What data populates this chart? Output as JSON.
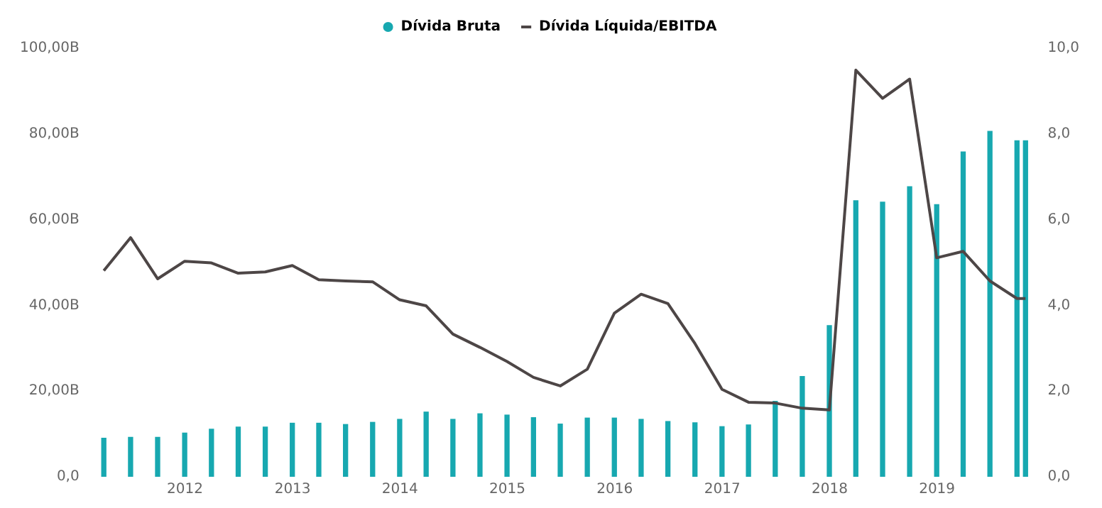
{
  "chart_data": {
    "type": "bar",
    "legend": "top",
    "x": [
      "2011-03-31",
      "2011-06-30",
      "2011-09-30",
      "2011-12-31",
      "2012-03-31",
      "2012-06-30",
      "2012-09-30",
      "2012-12-31",
      "2013-03-31",
      "2013-06-30",
      "2013-09-30",
      "2013-12-31",
      "2014-03-31",
      "2014-06-30",
      "2014-09-30",
      "2014-12-31",
      "2015-03-31",
      "2015-06-30",
      "2015-09-30",
      "2015-12-31",
      "2016-03-31",
      "2016-06-30",
      "2016-09-30",
      "2016-12-31",
      "2017-03-31",
      "2017-06-30",
      "2017-09-30",
      "2017-12-31",
      "2018-03-31",
      "2018-06-30",
      "2018-09-30",
      "2018-12-31",
      "2019-03-31",
      "2019-06-30",
      "2019-09-30",
      "2019-10-29"
    ],
    "xlim": [
      "2011-02-24",
      "2019-11-25"
    ],
    "xticks": [
      {
        "value": "2012-01-01",
        "label": "2012"
      },
      {
        "value": "2013-01-01",
        "label": "2013"
      },
      {
        "value": "2014-01-01",
        "label": "2014"
      },
      {
        "value": "2015-01-01",
        "label": "2015"
      },
      {
        "value": "2016-01-01",
        "label": "2016"
      },
      {
        "value": "2017-01-01",
        "label": "2017"
      },
      {
        "value": "2018-01-01",
        "label": "2018"
      },
      {
        "value": "2019-01-01",
        "label": "2019"
      }
    ],
    "ylim": [
      0,
      100
    ],
    "yticks": [
      {
        "value": 0,
        "label": "0,0"
      },
      {
        "value": 20,
        "label": "20,00B"
      },
      {
        "value": 40,
        "label": "40,00B"
      },
      {
        "value": 60,
        "label": "60,00B"
      },
      {
        "value": 80,
        "label": "80,00B"
      },
      {
        "value": 100,
        "label": "100,00B"
      }
    ],
    "y2lim": [
      0,
      10
    ],
    "y2ticks": [
      {
        "value": 0,
        "label": "0,0"
      },
      {
        "value": 2,
        "label": "2,0"
      },
      {
        "value": 4,
        "label": "4,0"
      },
      {
        "value": 6,
        "label": "6,0"
      },
      {
        "value": 8,
        "label": "8,0"
      },
      {
        "value": 10,
        "label": "10,0"
      }
    ],
    "series": [
      {
        "name": "Dívida Bruta",
        "color": "#17a8b0",
        "values": [
          9.0,
          9.2,
          9.2,
          10.2,
          11.1,
          11.6,
          11.6,
          12.5,
          12.5,
          12.2,
          12.7,
          13.4,
          15.1,
          13.4,
          14.7,
          14.4,
          13.8,
          12.3,
          13.7,
          13.7,
          13.4,
          12.9,
          12.6,
          11.7,
          12.1,
          17.6,
          23.4,
          35.3,
          64.4,
          64.1,
          67.7,
          63.5,
          75.8,
          80.6,
          78.4,
          78.4
        ]
      },
      {
        "name": "Dívida Líquida/EBITDA",
        "type": "line",
        "axis": "y2",
        "color": "#4d4646",
        "values": [
          4.81,
          5.58,
          4.62,
          5.03,
          4.99,
          4.75,
          4.78,
          4.93,
          4.6,
          4.57,
          4.55,
          4.13,
          3.99,
          3.33,
          3.02,
          2.69,
          2.32,
          2.12,
          2.51,
          3.82,
          4.26,
          4.04,
          3.11,
          2.04,
          1.74,
          1.72,
          1.6,
          1.56,
          9.49,
          8.83,
          9.28,
          5.11,
          5.26,
          4.57,
          4.16,
          4.16
        ]
      }
    ]
  }
}
